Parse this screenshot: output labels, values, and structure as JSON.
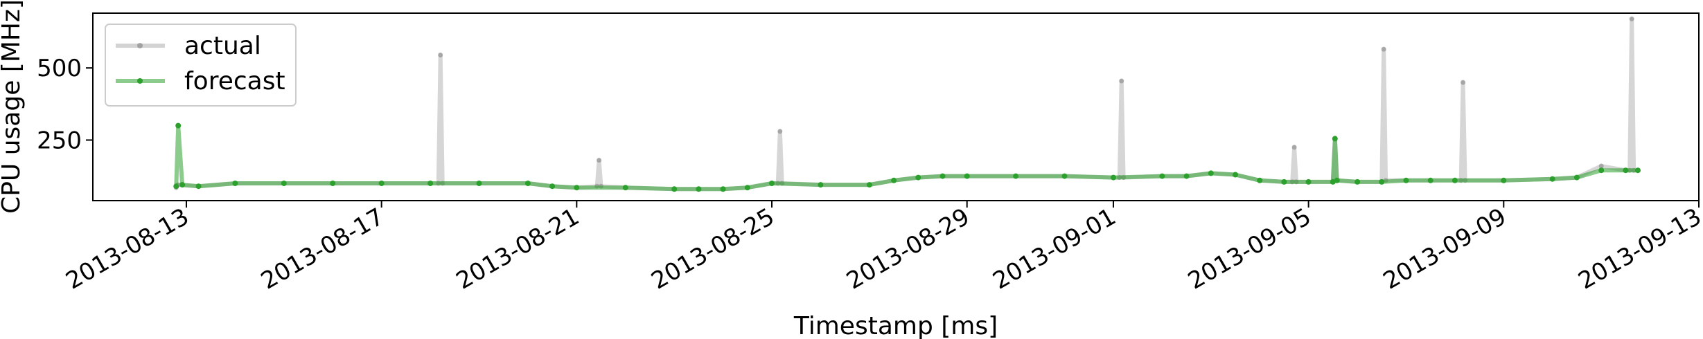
{
  "chart_data": {
    "type": "line",
    "xlabel": "Timestamp [ms]",
    "ylabel": "CPU usage [MHz]",
    "x_range": [
      "2013-08-11T02:00",
      "2013-09-13T00:00"
    ],
    "y_range": [
      40,
      690
    ],
    "x_ticks": [
      "2013-08-13",
      "2013-08-17",
      "2013-08-21",
      "2013-08-25",
      "2013-08-29",
      "2013-09-01",
      "2013-09-05",
      "2013-09-09",
      "2013-09-13"
    ],
    "y_ticks": [
      250,
      500
    ],
    "grid": false,
    "legend": {
      "position": "top-left",
      "entries": [
        "actual",
        "forecast"
      ]
    },
    "colors": {
      "actual": "#808080",
      "forecast": "#2ca02c"
    },
    "series": [
      {
        "name": "actual",
        "x": [
          "2013-08-12T19:00",
          "2013-08-12T20:00",
          "2013-08-13T06:00",
          "2013-08-14T00:00",
          "2013-08-15T00:00",
          "2013-08-16T00:00",
          "2013-08-17T00:00",
          "2013-08-18T00:00",
          "2013-08-18T04:00",
          "2013-08-18T05:00",
          "2013-08-18T06:00",
          "2013-08-19T00:00",
          "2013-08-20T00:00",
          "2013-08-20T12:00",
          "2013-08-21T00:00",
          "2013-08-21T10:00",
          "2013-08-21T11:00",
          "2013-08-21T12:00",
          "2013-08-22T00:00",
          "2013-08-23T00:00",
          "2013-08-23T12:00",
          "2013-08-24T00:00",
          "2013-08-24T12:00",
          "2013-08-25T00:00",
          "2013-08-25T03:00",
          "2013-08-25T04:00",
          "2013-08-25T05:00",
          "2013-08-26T00:00",
          "2013-08-27T00:00",
          "2013-08-27T12:00",
          "2013-08-28T00:00",
          "2013-08-28T12:00",
          "2013-08-29T00:00",
          "2013-08-30T00:00",
          "2013-08-31T00:00",
          "2013-09-01T00:00",
          "2013-09-01T03:00",
          "2013-09-01T04:00",
          "2013-09-01T05:00",
          "2013-09-02T00:00",
          "2013-09-02T12:00",
          "2013-09-03T00:00",
          "2013-09-03T12:00",
          "2013-09-04T00:00",
          "2013-09-04T12:00",
          "2013-09-04T16:00",
          "2013-09-04T17:00",
          "2013-09-04T18:00",
          "2013-09-05T00:00",
          "2013-09-05T12:00",
          "2013-09-05T13:00",
          "2013-09-05T14:00",
          "2013-09-06T00:00",
          "2013-09-06T12:00",
          "2013-09-06T13:00",
          "2013-09-06T14:00",
          "2013-09-07T00:00",
          "2013-09-07T12:00",
          "2013-09-08T00:00",
          "2013-09-08T03:00",
          "2013-09-08T04:00",
          "2013-09-08T05:00",
          "2013-09-09T00:00",
          "2013-09-10T00:00",
          "2013-09-10T12:00",
          "2013-09-11T00:00",
          "2013-09-11T12:00",
          "2013-09-11T14:00",
          "2013-09-11T15:00",
          "2013-09-11T16:00",
          "2013-09-11T18:00"
        ],
        "values": [
          85,
          95,
          90,
          100,
          100,
          100,
          100,
          100,
          100,
          545,
          100,
          100,
          100,
          90,
          85,
          90,
          180,
          90,
          85,
          80,
          80,
          80,
          85,
          100,
          100,
          280,
          100,
          95,
          95,
          110,
          120,
          125,
          125,
          125,
          125,
          120,
          120,
          455,
          120,
          125,
          125,
          135,
          130,
          110,
          105,
          105,
          225,
          105,
          105,
          105,
          255,
          110,
          105,
          105,
          565,
          110,
          110,
          110,
          110,
          110,
          450,
          110,
          110,
          115,
          120,
          160,
          145,
          145,
          670,
          145,
          145
        ]
      },
      {
        "name": "forecast",
        "x": [
          "2013-08-12T19:00",
          "2013-08-12T20:00",
          "2013-08-12T22:00",
          "2013-08-13T06:00",
          "2013-08-14T00:00",
          "2013-08-15T00:00",
          "2013-08-16T00:00",
          "2013-08-17T00:00",
          "2013-08-18T00:00",
          "2013-08-19T00:00",
          "2013-08-20T00:00",
          "2013-08-20T12:00",
          "2013-08-21T00:00",
          "2013-08-22T00:00",
          "2013-08-23T00:00",
          "2013-08-23T12:00",
          "2013-08-24T00:00",
          "2013-08-24T12:00",
          "2013-08-25T00:00",
          "2013-08-26T00:00",
          "2013-08-27T00:00",
          "2013-08-27T12:00",
          "2013-08-28T00:00",
          "2013-08-28T12:00",
          "2013-08-29T00:00",
          "2013-08-30T00:00",
          "2013-08-31T00:00",
          "2013-09-01T00:00",
          "2013-09-02T00:00",
          "2013-09-02T12:00",
          "2013-09-03T00:00",
          "2013-09-03T12:00",
          "2013-09-04T00:00",
          "2013-09-04T12:00",
          "2013-09-05T00:00",
          "2013-09-05T12:00",
          "2013-09-05T13:00",
          "2013-09-05T14:00",
          "2013-09-06T00:00",
          "2013-09-06T12:00",
          "2013-09-07T00:00",
          "2013-09-07T12:00",
          "2013-09-08T00:00",
          "2013-09-09T00:00",
          "2013-09-10T00:00",
          "2013-09-10T12:00",
          "2013-09-11T00:00",
          "2013-09-11T12:00",
          "2013-09-11T18:00"
        ],
        "values": [
          90,
          300,
          95,
          90,
          100,
          100,
          100,
          100,
          100,
          100,
          100,
          90,
          85,
          85,
          80,
          80,
          80,
          85,
          100,
          95,
          95,
          110,
          120,
          125,
          125,
          125,
          125,
          120,
          125,
          125,
          135,
          130,
          110,
          105,
          105,
          105,
          255,
          110,
          105,
          105,
          110,
          110,
          110,
          110,
          115,
          120,
          145,
          145,
          145
        ]
      }
    ]
  }
}
